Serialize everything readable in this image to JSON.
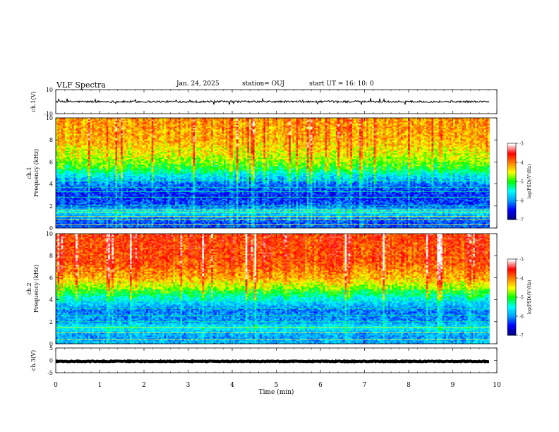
{
  "header": {
    "title": "VLF Spectra",
    "date": "Jan. 24, 2025",
    "station": "station= OUJ",
    "start": "start  UT =   16: 10: 0"
  },
  "chart_data": [
    {
      "type": "line",
      "panel": "ch1-waveform",
      "ylabel": "ch.1(V)",
      "ylim": [
        -10,
        10
      ],
      "yticks": [
        "10",
        "-10"
      ],
      "xlim": [
        0,
        10
      ],
      "data_end_min": 9.83,
      "baseline": 0.0,
      "noise_amplitude": 0.8,
      "color": "#000000"
    },
    {
      "type": "heatmap",
      "panel": "ch1-spectrogram",
      "ylabel": "ch.1 Frequency (kHz)",
      "ylim": [
        0,
        10
      ],
      "yticks": [
        "0",
        "2",
        "4",
        "6",
        "8",
        "10"
      ],
      "xlim": [
        0,
        10
      ],
      "data_end_min": 9.83,
      "colorbar": {
        "label": "log(PSD)(V²/Hz)",
        "range": [
          -7,
          -3
        ],
        "ticks": [
          "-3",
          "-4",
          "-5",
          "-6",
          "-7"
        ],
        "colors": [
          "#000080",
          "#0000ff",
          "#00a0ff",
          "#00ffff",
          "#00ff00",
          "#ffff00",
          "#ff8000",
          "#ff0000",
          "#ffffff"
        ]
      },
      "profile_khz_logpsd": [
        [
          0,
          -6.2
        ],
        [
          0.5,
          -6.3
        ],
        [
          1.0,
          -6.0
        ],
        [
          1.5,
          -5.6
        ],
        [
          2.0,
          -6.2
        ],
        [
          3.0,
          -6.4
        ],
        [
          4.0,
          -6.1
        ],
        [
          4.8,
          -5.6
        ],
        [
          5.5,
          -5.0
        ],
        [
          6.5,
          -4.6
        ],
        [
          8.0,
          -4.2
        ],
        [
          10.0,
          -4.1
        ]
      ],
      "lines_khz": [
        0.3,
        0.75,
        1.05,
        1.45,
        1.65,
        2.0,
        2.8,
        3.3,
        3.7,
        4.3
      ]
    },
    {
      "type": "heatmap",
      "panel": "ch2-spectrogram",
      "ylabel": "ch.2 Frequency (kHz)",
      "ylim": [
        0,
        10
      ],
      "yticks": [
        "0",
        "2",
        "4",
        "6",
        "8",
        "10"
      ],
      "xlim": [
        0,
        10
      ],
      "data_end_min": 9.83,
      "colorbar": {
        "label": "log(PSD)(V²/Hz)",
        "range": [
          -7,
          -3
        ],
        "ticks": [
          "-3",
          "-4",
          "-5",
          "-6",
          "-7"
        ],
        "colors": [
          "#000080",
          "#0000ff",
          "#00a0ff",
          "#00ffff",
          "#00ff00",
          "#ffff00",
          "#ff8000",
          "#ff0000",
          "#ffffff"
        ]
      },
      "profile_khz_logpsd": [
        [
          0,
          -5.8
        ],
        [
          0.5,
          -6.0
        ],
        [
          1.0,
          -5.9
        ],
        [
          1.5,
          -5.5
        ],
        [
          2.0,
          -6.0
        ],
        [
          3.0,
          -6.1
        ],
        [
          4.0,
          -5.6
        ],
        [
          5.0,
          -4.8
        ],
        [
          6.0,
          -4.2
        ],
        [
          7.5,
          -3.8
        ],
        [
          10.0,
          -3.7
        ]
      ],
      "lines_khz": [
        0.4,
        1.0,
        1.5,
        2.0,
        2.6,
        3.2,
        3.9,
        4.5,
        4.8
      ]
    },
    {
      "type": "line",
      "panel": "ch3-waveform",
      "ylabel": "ch.3(V)",
      "ylim": [
        -5,
        5
      ],
      "yticks": [
        "5",
        "0",
        "-5"
      ],
      "xlim": [
        0,
        10
      ],
      "data_end_min": 9.83,
      "baseline": -0.4,
      "noise_amplitude": 0.15,
      "color": "#000000"
    }
  ],
  "x_axis": {
    "label": "Time (min)",
    "ticks": [
      "0",
      "1",
      "2",
      "3",
      "4",
      "5",
      "6",
      "7",
      "8",
      "9",
      "10"
    ]
  }
}
